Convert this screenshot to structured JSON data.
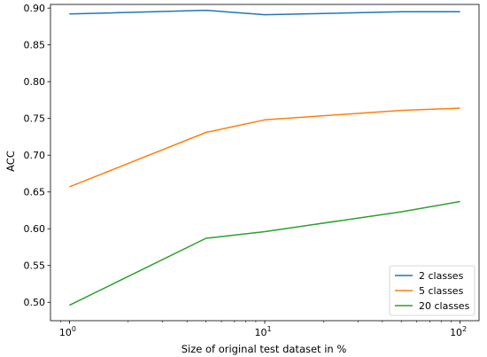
{
  "chart_data": {
    "type": "line",
    "xscale": "log",
    "xlabel": "Size of original test dataset in %",
    "ylabel": "ACC",
    "xlim": [
      0.8,
      125
    ],
    "ylim": [
      0.475,
      0.905
    ],
    "xticks": [
      {
        "value": 1,
        "base": "10",
        "exp": "0"
      },
      {
        "value": 10,
        "base": "10",
        "exp": "1"
      },
      {
        "value": 100,
        "base": "10",
        "exp": "2"
      }
    ],
    "yticks": [
      "0.50",
      "0.55",
      "0.60",
      "0.65",
      "0.70",
      "0.75",
      "0.80",
      "0.85",
      "0.90"
    ],
    "grid": false,
    "legend_position": "lower-right",
    "x": [
      1,
      5,
      10,
      50,
      100
    ],
    "series": [
      {
        "name": "2 classes",
        "color": "#1f77b4",
        "values": [
          0.892,
          0.897,
          0.891,
          0.895,
          0.895
        ]
      },
      {
        "name": "5 classes",
        "color": "#ff7f0e",
        "values": [
          0.657,
          0.731,
          0.748,
          0.761,
          0.764
        ]
      },
      {
        "name": "20 classes",
        "color": "#2ca02c",
        "values": [
          0.496,
          0.587,
          0.596,
          0.623,
          0.637
        ]
      }
    ]
  }
}
